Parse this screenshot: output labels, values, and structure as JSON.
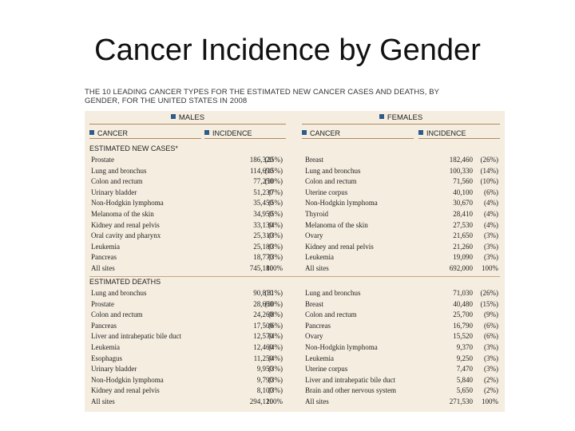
{
  "slide": {
    "title": "Cancer Incidence by Gender",
    "caption": "THE 10 LEADING CANCER TYPES FOR THE ESTIMATED NEW CANCER CASES AND DEATHS, BY GENDER, FOR THE UNITED STATES IN 2008"
  },
  "table": {
    "males_header": "MALES",
    "females_header": "FEMALES",
    "col_cancer": "CANCER",
    "col_incidence": "INCIDENCE",
    "section_new": "ESTIMATED NEW CASES*",
    "section_deaths": "ESTIMATED DEATHS",
    "new_cases": [
      {
        "m_name": "Prostate",
        "m_count": "186,320",
        "m_pct": "(25%)",
        "f_name": "Breast",
        "f_count": "182,460",
        "f_pct": "(26%)"
      },
      {
        "m_name": "Lung and bronchus",
        "m_count": "114,690",
        "m_pct": "(15%)",
        "f_name": "Lung and bronchus",
        "f_count": "100,330",
        "f_pct": "(14%)"
      },
      {
        "m_name": "Colon and rectum",
        "m_count": "77,250",
        "m_pct": "(10%)",
        "f_name": "Colon and rectum",
        "f_count": "71,560",
        "f_pct": "(10%)"
      },
      {
        "m_name": "Urinary bladder",
        "m_count": "51,230",
        "m_pct": "(7%)",
        "f_name": "Uterine corpus",
        "f_count": "40,100",
        "f_pct": "(6%)"
      },
      {
        "m_name": "Non-Hodgkin lymphoma",
        "m_count": "35,450",
        "m_pct": "(5%)",
        "f_name": "Non-Hodgkin lymphoma",
        "f_count": "30,670",
        "f_pct": "(4%)"
      },
      {
        "m_name": "Melanoma of the skin",
        "m_count": "34,950",
        "m_pct": "(5%)",
        "f_name": "Thyroid",
        "f_count": "28,410",
        "f_pct": "(4%)"
      },
      {
        "m_name": "Kidney and renal pelvis",
        "m_count": "33,130",
        "m_pct": "(4%)",
        "f_name": "Melanoma of the skin",
        "f_count": "27,530",
        "f_pct": "(4%)"
      },
      {
        "m_name": "Oral cavity and pharynx",
        "m_count": "25,310",
        "m_pct": "(3%)",
        "f_name": "Ovary",
        "f_count": "21,650",
        "f_pct": "(3%)"
      },
      {
        "m_name": "Leukemia",
        "m_count": "25,180",
        "m_pct": "(3%)",
        "f_name": "Kidney and renal pelvis",
        "f_count": "21,260",
        "f_pct": "(3%)"
      },
      {
        "m_name": "Pancreas",
        "m_count": "18,770",
        "m_pct": "(3%)",
        "f_name": "Leukemia",
        "f_count": "19,090",
        "f_pct": "(3%)"
      },
      {
        "m_name": "All sites",
        "m_count": "745,180",
        "m_pct": "100%",
        "f_name": "All sites",
        "f_count": "692,000",
        "f_pct": "100%"
      }
    ],
    "deaths": [
      {
        "m_name": "Lung and bronchus",
        "m_count": "90,810",
        "m_pct": "(31%)",
        "f_name": "Lung and bronchus",
        "f_count": "71,030",
        "f_pct": "(26%)"
      },
      {
        "m_name": "Prostate",
        "m_count": "28,660",
        "m_pct": "(10%)",
        "f_name": "Breast",
        "f_count": "40,480",
        "f_pct": "(15%)"
      },
      {
        "m_name": "Colon and rectum",
        "m_count": "24,260",
        "m_pct": "(8%)",
        "f_name": "Colon and rectum",
        "f_count": "25,700",
        "f_pct": "(9%)"
      },
      {
        "m_name": "Pancreas",
        "m_count": "17,500",
        "m_pct": "(6%)",
        "f_name": "Pancreas",
        "f_count": "16,790",
        "f_pct": "(6%)"
      },
      {
        "m_name": "Liver and intrahepatic bile duct",
        "m_count": "12,570",
        "m_pct": "(4%)",
        "f_name": "Ovary",
        "f_count": "15,520",
        "f_pct": "(6%)"
      },
      {
        "m_name": "Leukemia",
        "m_count": "12,460",
        "m_pct": "(4%)",
        "f_name": "Non-Hodgkin lymphoma",
        "f_count": "9,370",
        "f_pct": "(3%)"
      },
      {
        "m_name": "Esophagus",
        "m_count": "11,250",
        "m_pct": "(4%)",
        "f_name": "Leukemia",
        "f_count": "9,250",
        "f_pct": "(3%)"
      },
      {
        "m_name": "Urinary bladder",
        "m_count": "9,950",
        "m_pct": "(3%)",
        "f_name": "Uterine corpus",
        "f_count": "7,470",
        "f_pct": "(3%)"
      },
      {
        "m_name": "Non-Hodgkin lymphoma",
        "m_count": "9,790",
        "m_pct": "(3%)",
        "f_name": "Liver and intrahepatic bile duct",
        "f_count": "5,840",
        "f_pct": "(2%)"
      },
      {
        "m_name": "Kidney and renal pelvis",
        "m_count": "8,100",
        "m_pct": "(3%)",
        "f_name": "Brain and other nervous system",
        "f_count": "5,650",
        "f_pct": "(2%)"
      },
      {
        "m_name": "All sites",
        "m_count": "294,120",
        "m_pct": "100%",
        "f_name": "All sites",
        "f_count": "271,530",
        "f_pct": "100%"
      }
    ]
  }
}
